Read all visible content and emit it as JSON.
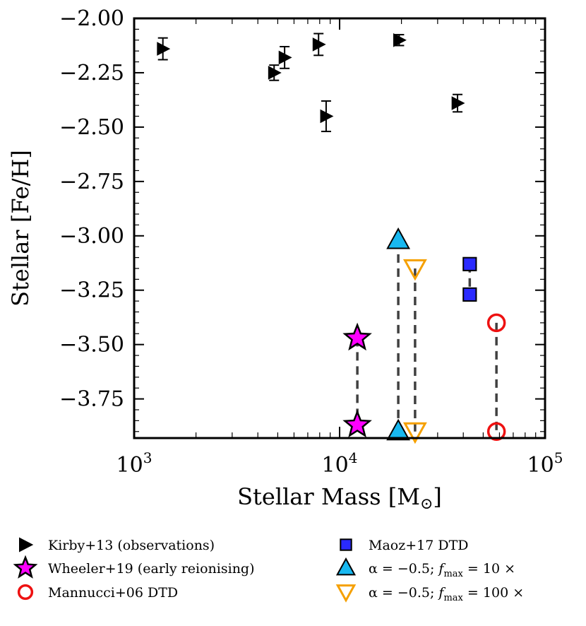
{
  "chart_data": {
    "type": "scatter",
    "title": "",
    "xlabel": "Stellar Mass [M",
    "xlabel_unit_symbol": "⊙",
    "xlabel_close": "]",
    "ylabel": "Stellar [Fe/H]",
    "xscale": "log",
    "xlim": [
      1000,
      100000
    ],
    "ylim": [
      -3.93,
      -2.0
    ],
    "x_ticks": [
      {
        "value": 1000,
        "base": "10",
        "exp": "3"
      },
      {
        "value": 10000,
        "base": "10",
        "exp": "4"
      },
      {
        "value": 100000,
        "base": "10",
        "exp": "5"
      }
    ],
    "y_ticks": [
      -2.0,
      -2.25,
      -2.5,
      -2.75,
      -3.0,
      -3.25,
      -3.5,
      -3.75
    ],
    "y_tick_labels": [
      "−2.00",
      "−2.25",
      "−2.50",
      "−2.75",
      "−3.00",
      "−3.25",
      "−3.50",
      "−3.75"
    ],
    "series": [
      {
        "name": "Kirby+13 (observations)",
        "marker": "triangle-right",
        "color": "#000000",
        "points": [
          {
            "x": 1380,
            "y": -2.14,
            "yerr": 0.05
          },
          {
            "x": 4800,
            "y": -2.25,
            "yerr": 0.035
          },
          {
            "x": 5400,
            "y": -2.18,
            "yerr": 0.05
          },
          {
            "x": 7900,
            "y": -2.12,
            "yerr": 0.05
          },
          {
            "x": 8600,
            "y": -2.45,
            "yerr": 0.07
          },
          {
            "x": 19500,
            "y": -2.1,
            "yerr": 0.025
          },
          {
            "x": 37500,
            "y": -2.39,
            "yerr": 0.04
          }
        ]
      },
      {
        "name": "Wheeler+19 (early reionising)",
        "marker": "star",
        "color": "#ff00ff",
        "edge": "#000000",
        "x": 12200,
        "y": [
          -3.47,
          -3.87
        ]
      },
      {
        "name": "Mannucci+06 DTD",
        "marker": "circle-open",
        "color": "#ee1111",
        "x": 58000,
        "y": [
          -3.4,
          -3.9
        ]
      },
      {
        "name": "Maoz+17 DTD",
        "marker": "square",
        "color": "#2a2aff",
        "edge": "#000000",
        "x": 43000,
        "y": [
          -3.13,
          -3.27
        ]
      },
      {
        "name": "α = −0.5; f_max = 10×",
        "marker": "triangle-up",
        "color": "#18b8f0",
        "edge": "#000000",
        "x": 19300,
        "y": [
          -3.02,
          -3.9
        ]
      },
      {
        "name": "α = −0.5; f_max = 100×",
        "marker": "triangle-down-open",
        "color": "#f5a000",
        "x": 23300,
        "y": [
          -3.15,
          -3.9
        ]
      }
    ],
    "legend": {
      "placement": "below",
      "columns": 2,
      "entries": [
        {
          "label": "Kirby+13 (observations)"
        },
        {
          "label": "Wheeler+19 (early reionising)"
        },
        {
          "label": "Mannucci+06 DTD"
        },
        {
          "label": "Maoz+17 DTD"
        },
        {
          "label_pre": "α = −0.5; ",
          "label_f": "f",
          "label_sub": "max",
          "label_post": " = 10 ×"
        },
        {
          "label_pre": "α = −0.5; ",
          "label_f": "f",
          "label_sub": "max",
          "label_post": " = 100 ×"
        }
      ]
    }
  }
}
